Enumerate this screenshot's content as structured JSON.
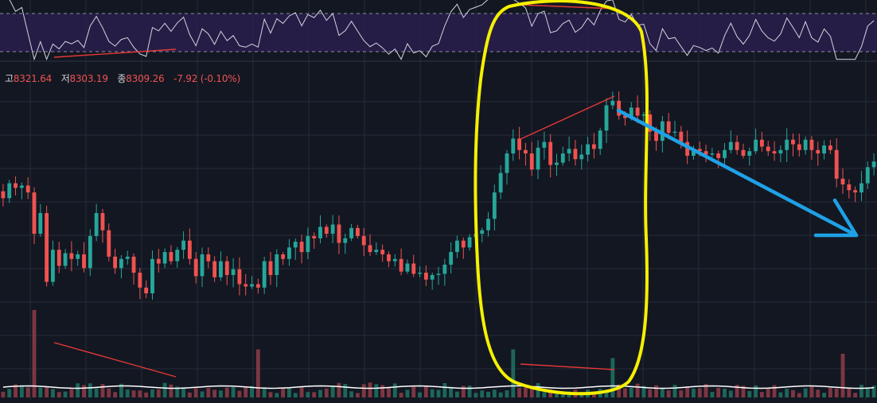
{
  "ohlc_legend": {
    "high_label": "고",
    "high_value": "8321.64",
    "low_label": "저",
    "low_value": "8303.19",
    "close_label": "종",
    "close_value": "8309.26",
    "change": "-7.92 (-0.10%)"
  },
  "colors": {
    "background": "#131722",
    "grid": "#262b38",
    "up": "#26a69a",
    "down": "#ef5350",
    "rsi_band": "#2a1f4d",
    "rsi_line": "#d1d4dc",
    "annotation_red": "#e53935",
    "highlight_yellow": "#f5f000",
    "arrow_blue": "#1ea1e6",
    "volume_ma": "#ffffff"
  },
  "chart_data": {
    "type": "candlestick",
    "price_range": [
      8140,
      8400
    ],
    "closes": [
      8293,
      8306,
      8302,
      8304,
      8298,
      8262,
      8280,
      8220,
      8248,
      8234,
      8245,
      8240,
      8244,
      8232,
      8260,
      8280,
      8265,
      8242,
      8232,
      8240,
      8242,
      8228,
      8215,
      8210,
      8240,
      8236,
      8246,
      8238,
      8248,
      8256,
      8240,
      8225,
      8244,
      8238,
      8224,
      8238,
      8226,
      8231,
      8218,
      8216,
      8218,
      8215,
      8238,
      8226,
      8244,
      8240,
      8250,
      8255,
      8246,
      8260,
      8258,
      8268,
      8262,
      8270,
      8254,
      8258,
      8267,
      8260,
      8252,
      8246,
      8248,
      8244,
      8238,
      8240,
      8229,
      8236,
      8227,
      8228,
      8222,
      8226,
      8227,
      8235,
      8246,
      8256,
      8250,
      8259,
      8262,
      8265,
      8275,
      8298,
      8315,
      8332,
      8345,
      8335,
      8332,
      8318,
      8337,
      8342,
      8322,
      8324,
      8332,
      8336,
      8327,
      8331,
      8340,
      8336,
      8352,
      8374,
      8378,
      8365,
      8363,
      8372,
      8365,
      8366,
      8351,
      8343,
      8360,
      8350,
      8351,
      8342,
      8330,
      8336,
      8334,
      8331,
      8332,
      8328,
      8335,
      8342,
      8335,
      8330,
      8334,
      8344,
      8338,
      8334,
      8332,
      8335,
      8344,
      8340,
      8335,
      8344,
      8335,
      8332,
      8339,
      8335,
      8310,
      8305,
      8300,
      8298,
      8306,
      8320,
      8325
    ],
    "rsi_levels": [
      30,
      70
    ],
    "volume_spikes": [
      {
        "index": 5,
        "volume": 1.0
      },
      {
        "index": 41,
        "volume": 0.55
      },
      {
        "index": 82,
        "volume": 0.55
      },
      {
        "index": 98,
        "volume": 0.45
      },
      {
        "index": 135,
        "volume": 0.5
      }
    ]
  }
}
